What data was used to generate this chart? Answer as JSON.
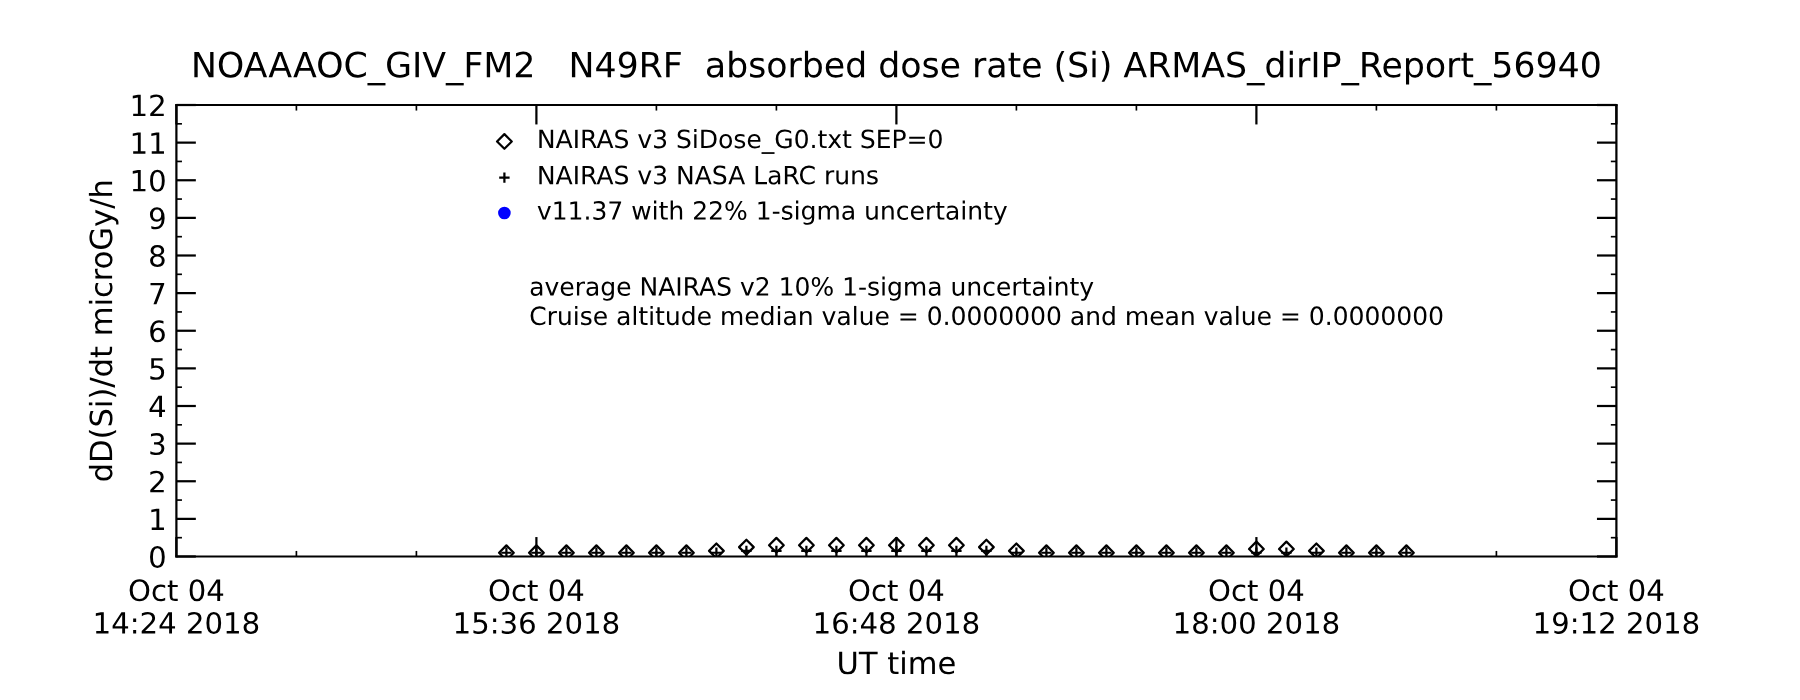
{
  "chart_data": {
    "type": "scatter",
    "title": "NOAAAOC_GIV_FM2   N49RF  absorbed dose rate (Si) ARMAS_dirIP_Report_56940",
    "xlabel": "UT time",
    "ylabel": "dD(Si)/dt microGy/h",
    "x": [
      "2018-10-04T15:30",
      "2018-10-04T15:36",
      "2018-10-04T15:42",
      "2018-10-04T15:48",
      "2018-10-04T15:54",
      "2018-10-04T16:00",
      "2018-10-04T16:06",
      "2018-10-04T16:12",
      "2018-10-04T16:18",
      "2018-10-04T16:24",
      "2018-10-04T16:30",
      "2018-10-04T16:36",
      "2018-10-04T16:42",
      "2018-10-04T16:48",
      "2018-10-04T16:54",
      "2018-10-04T17:00",
      "2018-10-04T17:06",
      "2018-10-04T17:12",
      "2018-10-04T17:18",
      "2018-10-04T17:24",
      "2018-10-04T17:30",
      "2018-10-04T17:36",
      "2018-10-04T17:42",
      "2018-10-04T17:48",
      "2018-10-04T17:54",
      "2018-10-04T18:00",
      "2018-10-04T18:06",
      "2018-10-04T18:12",
      "2018-10-04T18:18",
      "2018-10-04T18:24",
      "2018-10-04T18:30"
    ],
    "series": [
      {
        "name": "NAIRAS v3 SiDose_G0.txt SEP=0",
        "color": "#000000",
        "marker": "diamond",
        "values": [
          0.1,
          0.1,
          0.1,
          0.1,
          0.1,
          0.1,
          0.1,
          0.15,
          0.25,
          0.3,
          0.3,
          0.3,
          0.3,
          0.3,
          0.3,
          0.3,
          0.25,
          0.15,
          0.1,
          0.1,
          0.1,
          0.1,
          0.1,
          0.1,
          0.1,
          0.2,
          0.2,
          0.15,
          0.1,
          0.1,
          0.1
        ]
      },
      {
        "name": "NAIRAS v3 NASA LaRC runs",
        "color": "#000000",
        "marker": "cross",
        "values": [
          0.1,
          0.1,
          0.1,
          0.1,
          0.1,
          0.1,
          0.1,
          0.1,
          0.15,
          0.15,
          0.15,
          0.15,
          0.15,
          0.15,
          0.15,
          0.15,
          0.15,
          0.1,
          0.1,
          0.1,
          0.1,
          0.1,
          0.1,
          0.1,
          0.1,
          0.1,
          0.1,
          0.1,
          0.1,
          0.1,
          0.1
        ]
      },
      {
        "name": "v11.37 with 22% 1-sigma uncertainty",
        "color": "#0000ff",
        "marker": "circle",
        "values": [
          null,
          null,
          null,
          null,
          null,
          null,
          null,
          null,
          null,
          null,
          null,
          null,
          null,
          null,
          null,
          null,
          null,
          null,
          null,
          null,
          null,
          null,
          null,
          null,
          null,
          null,
          null,
          null,
          null,
          null,
          null
        ]
      }
    ],
    "annotations": [
      "average NAIRAS v2 10% 1-sigma uncertainty",
      "Cruise altitude median value = 0.0000000 and mean value = 0.0000000"
    ],
    "xlim": [
      "2018-10-04T14:24",
      "2018-10-04T19:12"
    ],
    "xticks": [
      {
        "value": "2018-10-04T14:24",
        "label": "Oct 04\n14:24 2018"
      },
      {
        "value": "2018-10-04T15:36",
        "label": "Oct 04\n15:36 2018"
      },
      {
        "value": "2018-10-04T16:48",
        "label": "Oct 04\n16:48 2018"
      },
      {
        "value": "2018-10-04T18:00",
        "label": "Oct 04\n18:00 2018"
      },
      {
        "value": "2018-10-04T19:12",
        "label": "Oct 04\n19:12 2018"
      }
    ],
    "ylim": [
      0,
      12
    ],
    "yticks": [
      0,
      1,
      2,
      3,
      4,
      5,
      6,
      7,
      8,
      9,
      10,
      11,
      12
    ],
    "grid": false,
    "legend": "top"
  }
}
